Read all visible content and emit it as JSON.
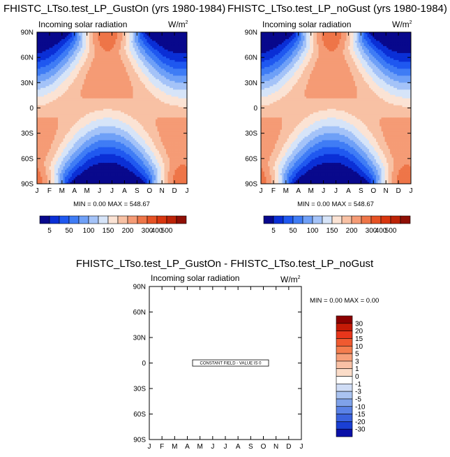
{
  "chart_data": [
    {
      "type": "heatmap",
      "title": "FHISTC_LTso.test_LP_GustOn (yrs 1980-1984)",
      "left_label": "Incoming solar radiation",
      "units_base": "W/m",
      "units_sup": "2",
      "x_ticks": [
        "J",
        "F",
        "M",
        "A",
        "M",
        "J",
        "J",
        "A",
        "S",
        "O",
        "N",
        "D",
        "J"
      ],
      "y_ticks": [
        "90N",
        "60N",
        "30N",
        "0",
        "30S",
        "60S",
        "90S"
      ],
      "stats": "MIN =   0.00 MAX = 548.67",
      "colorbar_labels": [
        "5",
        "50",
        "100",
        "150",
        "200",
        "300",
        "400",
        "500"
      ],
      "colors": [
        "#08088c",
        "#0a2fd6",
        "#1f58f0",
        "#3f7cf5",
        "#6fa0f7",
        "#a4c3f8",
        "#d6e4f8",
        "#fbe3d4",
        "#f8c1a4",
        "#f59b75",
        "#ee7548",
        "#e65224",
        "#d8360f",
        "#bc2307",
        "#8f0f05"
      ],
      "min": 0.0,
      "max": 548.67
    },
    {
      "type": "heatmap",
      "title": "FHISTC_LTso.test_LP_noGust (yrs 1980-1984)",
      "left_label": "Incoming solar radiation",
      "units_base": "W/m",
      "units_sup": "2",
      "x_ticks": [
        "J",
        "F",
        "M",
        "A",
        "M",
        "J",
        "J",
        "A",
        "S",
        "O",
        "N",
        "D",
        "J"
      ],
      "y_ticks": [
        "90N",
        "60N",
        "30N",
        "0",
        "30S",
        "60S",
        "90S"
      ],
      "stats": "MIN =   0.00 MAX = 548.67",
      "colorbar_labels": [
        "5",
        "50",
        "100",
        "150",
        "200",
        "300",
        "400",
        "500"
      ],
      "colors": [
        "#08088c",
        "#0a2fd6",
        "#1f58f0",
        "#3f7cf5",
        "#6fa0f7",
        "#a4c3f8",
        "#d6e4f8",
        "#fbe3d4",
        "#f8c1a4",
        "#f59b75",
        "#ee7548",
        "#e65224",
        "#d8360f",
        "#bc2307",
        "#8f0f05"
      ],
      "min": 0.0,
      "max": 548.67
    },
    {
      "type": "heatmap",
      "title": "FHISTC_LTso.test_LP_GustOn - FHISTC_LTso.test_LP_noGust",
      "left_label": "Incoming solar radiation",
      "units_base": "W/m",
      "units_sup": "2",
      "x_ticks": [
        "J",
        "F",
        "M",
        "A",
        "M",
        "J",
        "J",
        "A",
        "S",
        "O",
        "N",
        "D",
        "J"
      ],
      "y_ticks": [
        "90N",
        "60N",
        "30N",
        "0",
        "30S",
        "60S",
        "90S"
      ],
      "stats": "MIN =   0.00 MAX =   0.00",
      "annotation": "CONSTANT FIELD - VALUE IS 0",
      "colorbar_labels": [
        "30",
        "20",
        "15",
        "10",
        "5",
        "3",
        "1",
        "0",
        "-1",
        "-3",
        "-5",
        "-10",
        "-15",
        "-20",
        "-30"
      ],
      "colors": [
        "#8b0000",
        "#c41a06",
        "#e8361b",
        "#f05a30",
        "#f47d4e",
        "#f7a07a",
        "#f9c1a5",
        "#fbdcc8",
        "#ffffff",
        "#cfdcf5",
        "#a9c2f0",
        "#7fa2ea",
        "#5a82e6",
        "#3a62dd",
        "#1a3fd4",
        "#0a10a8"
      ],
      "min": 0.0,
      "max": 0.0
    }
  ]
}
